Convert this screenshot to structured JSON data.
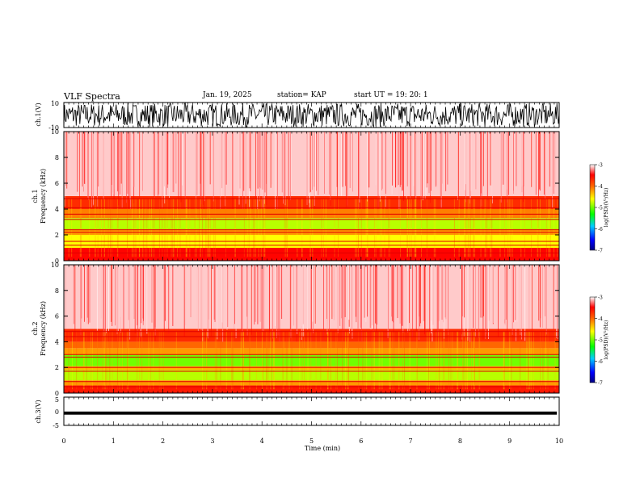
{
  "header": {
    "title": "VLF Spectra",
    "date": "Jan. 19, 2025",
    "station": "station= KAP",
    "start": "start  UT  =   19: 20: 1"
  },
  "colors": {
    "spectrum_low": "#000080",
    "spectrum_mid": "#00ff00",
    "spectrum_high": "#ff0000",
    "background": "#ffffff"
  },
  "chart_data": [
    {
      "type": "line",
      "panel": "ch1-waveform",
      "ylabel": "ch.1(V)",
      "ylim": [
        -10,
        10
      ],
      "y_tick_labels": [
        "10",
        "-10"
      ],
      "x_range_min": [
        0,
        10
      ],
      "note_signal": "broadband noise saturating near full scale"
    },
    {
      "type": "heatmap",
      "panel": "ch1-spectrogram",
      "ylabel_top": "ch.1",
      "ylabel": "Frequency  (kHz)",
      "ylim_khz": [
        0,
        10
      ],
      "y_tick_labels": [
        "0",
        "2",
        "4",
        "6",
        "8",
        "10"
      ],
      "x_range_min": [
        0,
        10
      ],
      "colorbar": {
        "label": "log(PSD)(V²/Hz)",
        "range": [
          -7,
          -3
        ],
        "tick_labels": [
          "-3",
          "-4",
          "-5",
          "-6",
          "-7"
        ]
      },
      "bands_khz": [
        {
          "from": 0.0,
          "to": 1.0,
          "level": -3.5
        },
        {
          "from": 1.0,
          "to": 2.0,
          "level": -4.6
        },
        {
          "from": 2.0,
          "to": 2.4,
          "level": -4.2
        },
        {
          "from": 2.4,
          "to": 3.3,
          "level": -4.8
        },
        {
          "from": 3.3,
          "to": 4.0,
          "level": -4.1
        },
        {
          "from": 4.0,
          "to": 5.0,
          "level": -3.7
        },
        {
          "from": 5.0,
          "to": 10.0,
          "level": -3.1
        }
      ],
      "lines_khz": [
        0.6,
        1.2,
        1.5,
        2.2,
        2.4,
        3.2,
        3.6,
        4.1,
        4.8
      ]
    },
    {
      "type": "heatmap",
      "panel": "ch2-spectrogram",
      "ylabel_top": "ch.2",
      "ylabel": "Frequency  (kHz)",
      "ylim_khz": [
        0,
        10
      ],
      "y_tick_labels": [
        "0",
        "2",
        "4",
        "6",
        "8",
        "10"
      ],
      "x_range_min": [
        0,
        10
      ],
      "colorbar": {
        "label": "log(PSD)(V²/Hz)",
        "range": [
          -7,
          -3
        ],
        "tick_labels": [
          "-3",
          "-4",
          "-5",
          "-6",
          "-7"
        ]
      },
      "bands_khz": [
        {
          "from": 0.0,
          "to": 0.6,
          "level": -3.6
        },
        {
          "from": 0.6,
          "to": 1.0,
          "level": -4.2
        },
        {
          "from": 1.0,
          "to": 1.8,
          "level": -4.8
        },
        {
          "from": 1.8,
          "to": 2.1,
          "level": -4.3
        },
        {
          "from": 2.1,
          "to": 3.0,
          "level": -5.0
        },
        {
          "from": 3.0,
          "to": 3.5,
          "level": -4.2
        },
        {
          "from": 3.5,
          "to": 4.0,
          "level": -4.0
        },
        {
          "from": 4.0,
          "to": 5.0,
          "level": -3.7
        },
        {
          "from": 5.0,
          "to": 10.0,
          "level": -3.1
        }
      ],
      "lines_khz": [
        0.5,
        0.9,
        1.7,
        2.0,
        2.8,
        3.0,
        4.4,
        4.8
      ]
    },
    {
      "type": "line",
      "panel": "ch3-waveform",
      "ylabel": "ch.3(V)",
      "ylim": [
        -5,
        5
      ],
      "y_tick_labels": [
        "5",
        "0",
        "-5"
      ],
      "band_v": [
        -1.2,
        -0.1
      ],
      "xlabel": "Time  (min)",
      "x_range_min": [
        0,
        10
      ],
      "x_tick_labels": [
        "0",
        "1",
        "2",
        "3",
        "4",
        "5",
        "6",
        "7",
        "8",
        "9",
        "10"
      ]
    }
  ]
}
